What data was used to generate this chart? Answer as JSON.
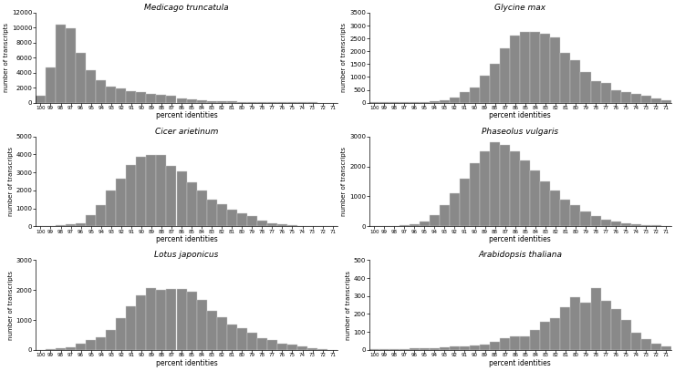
{
  "x_labels": [
    "100",
    "99",
    "98",
    "97",
    "96",
    "95",
    "94",
    "93",
    "92",
    "91",
    "90",
    "89",
    "88",
    "87",
    "86",
    "85",
    "84",
    "83",
    "82",
    "81",
    "80",
    "79",
    "78",
    "77",
    "76",
    "75",
    "74",
    "73",
    "72",
    "71"
  ],
  "bar_color": "#898989",
  "bar_edgecolor": "#cccccc",
  "background_color": "#ffffff",
  "panels": [
    {
      "title": "Medicago truncatula",
      "ylabel": "number of transcripts",
      "xlabel": "percent identities",
      "ylim": [
        0,
        12000
      ],
      "yticks": [
        0,
        2000,
        4000,
        6000,
        8000,
        10000,
        12000
      ],
      "values": [
        900,
        4700,
        10400,
        9900,
        6700,
        4300,
        3000,
        2200,
        1900,
        1500,
        1400,
        1200,
        1100,
        900,
        600,
        450,
        350,
        250,
        200,
        150,
        120,
        100,
        80,
        60,
        50,
        40,
        30,
        20,
        15,
        10
      ]
    },
    {
      "title": "Glycine max",
      "ylabel": "number of transcripts",
      "xlabel": "percent identities",
      "ylim": [
        0,
        3500
      ],
      "yticks": [
        0,
        500,
        1000,
        1500,
        2000,
        2500,
        3000,
        3500
      ],
      "values": [
        15,
        15,
        20,
        20,
        25,
        30,
        50,
        100,
        200,
        400,
        600,
        1050,
        1500,
        2100,
        2600,
        2750,
        2750,
        2700,
        2550,
        1950,
        1650,
        1200,
        850,
        780,
        480,
        420,
        340,
        260,
        160,
        90
      ]
    },
    {
      "title": "Cicer arietinum",
      "ylabel": "number of transcripts",
      "xlabel": "percent identities",
      "ylim": [
        0,
        5000
      ],
      "yticks": [
        0,
        1000,
        2000,
        3000,
        4000,
        5000
      ],
      "values": [
        5,
        5,
        50,
        100,
        180,
        600,
        1200,
        2000,
        2650,
        3400,
        3850,
        3950,
        3950,
        3350,
        3050,
        2450,
        2000,
        1500,
        1250,
        950,
        700,
        580,
        330,
        170,
        110,
        60,
        35,
        15,
        8,
        5
      ]
    },
    {
      "title": "Phaseolus vulgaris",
      "ylabel": "number of transcripts",
      "xlabel": "percent identities",
      "ylim": [
        0,
        3000
      ],
      "yticks": [
        0,
        1000,
        2000,
        3000
      ],
      "values": [
        5,
        5,
        15,
        25,
        60,
        160,
        380,
        700,
        1100,
        1600,
        2100,
        2500,
        2800,
        2700,
        2500,
        2200,
        1850,
        1500,
        1200,
        900,
        700,
        500,
        340,
        230,
        170,
        110,
        75,
        45,
        25,
        12
      ]
    },
    {
      "title": "Lotus japonicus",
      "ylabel": "number of transcripts",
      "xlabel": "percent identities",
      "ylim": [
        0,
        3000
      ],
      "yticks": [
        0,
        1000,
        2000,
        3000
      ],
      "values": [
        10,
        15,
        60,
        100,
        200,
        320,
        420,
        670,
        1050,
        1470,
        1830,
        2060,
        2000,
        2040,
        2050,
        1950,
        1680,
        1310,
        1080,
        840,
        720,
        580,
        390,
        320,
        200,
        170,
        110,
        70,
        35,
        10
      ]
    },
    {
      "title": "Arabidopsis thaliana",
      "ylabel": "number of transcripts",
      "xlabel": "percent identities",
      "ylim": [
        0,
        500
      ],
      "yticks": [
        0,
        100,
        200,
        300,
        400,
        500
      ],
      "values": [
        3,
        3,
        5,
        5,
        8,
        10,
        12,
        15,
        18,
        20,
        25,
        30,
        45,
        65,
        75,
        75,
        110,
        155,
        175,
        240,
        295,
        265,
        345,
        275,
        230,
        165,
        95,
        60,
        35,
        20
      ]
    }
  ]
}
